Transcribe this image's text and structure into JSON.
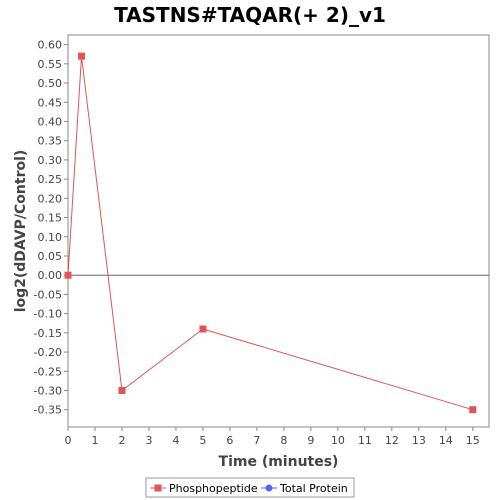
{
  "chart_data": {
    "type": "line",
    "title": "TASTNS#TAQAR(+ 2)_v1",
    "xlabel": "Time (minutes)",
    "ylabel": "log2(dDAVP/Control)",
    "xlim": [
      0,
      15.6
    ],
    "ylim": [
      -0.395,
      0.625
    ],
    "x_ticks": [
      0,
      1,
      2,
      3,
      4,
      5,
      6,
      7,
      8,
      9,
      10,
      11,
      12,
      13,
      14,
      15
    ],
    "x_tick_labels": [
      "0",
      "1",
      "2",
      "3",
      "4",
      "5",
      "6",
      "7",
      "8",
      "9",
      "10",
      "11",
      "12",
      "13",
      "14",
      "15"
    ],
    "y_ticks": [
      0.6,
      0.55,
      0.5,
      0.45,
      0.4,
      0.35,
      0.3,
      0.25,
      0.2,
      0.15,
      0.1,
      0.05,
      0.0,
      -0.05,
      -0.1,
      -0.15,
      -0.2,
      -0.25,
      -0.3,
      -0.35
    ],
    "y_tick_labels": [
      "0.60",
      "0.55",
      "0.50",
      "0.45",
      "0.40",
      "0.35",
      "0.30",
      "0.25",
      "0.20",
      "0.15",
      "0.10",
      "0.05",
      "0.00",
      "-0.05",
      "-0.10",
      "-0.15",
      "-0.20",
      "-0.25",
      "-0.30",
      "-0.35"
    ],
    "grid": false,
    "zero_line": true,
    "legend_position": "bottom",
    "series": [
      {
        "name": "Phosphopeptide",
        "color": "#e05555",
        "marker": "square",
        "x": [
          0,
          0.5,
          2,
          5,
          15
        ],
        "y": [
          0.0,
          0.57,
          -0.3,
          -0.14,
          -0.35
        ]
      },
      {
        "name": "Total Protein",
        "color": "#5566ee",
        "marker": "circle",
        "x": [],
        "y": []
      }
    ]
  }
}
